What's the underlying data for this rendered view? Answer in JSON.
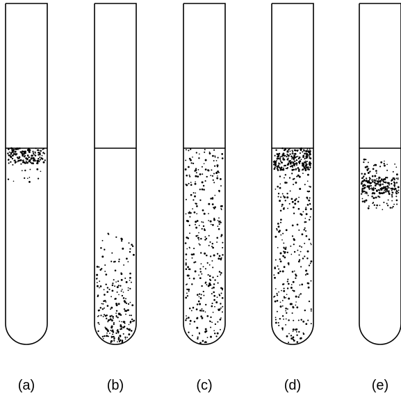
{
  "tubes": [
    {
      "label": "(a)"
    },
    {
      "label": "(b)"
    },
    {
      "label": "(c)"
    },
    {
      "label": "(d)"
    },
    {
      "label": "(e)"
    }
  ]
}
